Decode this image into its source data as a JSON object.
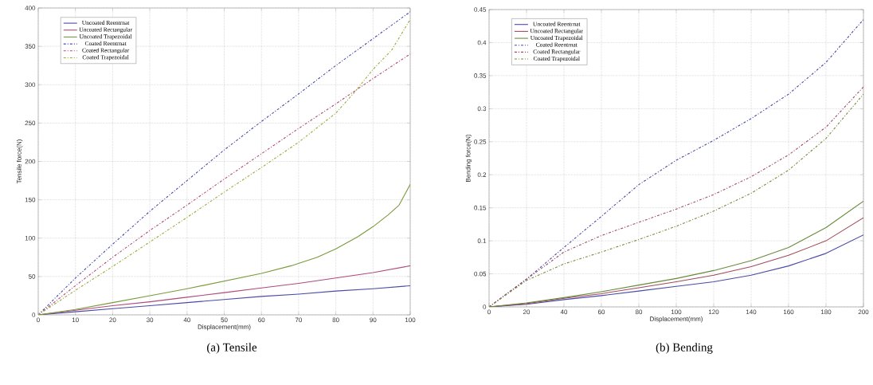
{
  "chart_data": [
    {
      "type": "line",
      "title": "(a) Tensile",
      "xlabel": "Displacement(mm)",
      "ylabel": "Tensile force(N)",
      "xlim": [
        0,
        100
      ],
      "xticks": [
        0,
        10,
        20,
        30,
        40,
        50,
        60,
        70,
        80,
        90,
        100
      ],
      "ylim": [
        0,
        400
      ],
      "yticks": [
        0,
        50,
        100,
        150,
        200,
        250,
        300,
        350,
        400
      ],
      "grid": true,
      "legend": "top left",
      "marker": "none",
      "series": [
        {
          "name": "Uncoated Reentrnat",
          "color": "#4a4aa8",
          "line_style": "solid",
          "x": [
            0,
            10,
            20,
            30,
            40,
            50,
            60,
            70,
            80,
            90,
            100
          ],
          "values": [
            0,
            4,
            8,
            12,
            16,
            20,
            24,
            27,
            31,
            34,
            38
          ]
        },
        {
          "name": "Uncoated Rectangular",
          "color": "#b04a7a",
          "line_style": "solid",
          "x": [
            0,
            10,
            20,
            30,
            40,
            50,
            60,
            70,
            80,
            90,
            100
          ],
          "values": [
            0,
            6,
            12,
            17,
            23,
            29,
            35,
            41,
            48,
            55,
            64
          ]
        },
        {
          "name": "Uncoated Trapezoidal",
          "color": "#7a9a3a",
          "line_style": "solid",
          "x": [
            0,
            10,
            20,
            30,
            40,
            50,
            60,
            68,
            75,
            80,
            86,
            90,
            94,
            97,
            100
          ],
          "values": [
            0,
            7,
            16,
            25,
            34,
            44,
            54,
            64,
            75,
            86,
            102,
            115,
            130,
            143,
            170
          ]
        },
        {
          "name": "Coated Reentrnat",
          "color": "#4a4aa8",
          "line_style": "dashed",
          "x": [
            0,
            10,
            20,
            30,
            40,
            50,
            60,
            70,
            80,
            90,
            100
          ],
          "values": [
            0,
            48,
            92,
            135,
            175,
            215,
            252,
            288,
            325,
            360,
            395
          ]
        },
        {
          "name": "Coated Rectangular",
          "color": "#b04a7a",
          "line_style": "dashed",
          "x": [
            0,
            10,
            20,
            30,
            40,
            50,
            60,
            70,
            80,
            90,
            100
          ],
          "values": [
            0,
            38,
            75,
            110,
            143,
            177,
            210,
            243,
            275,
            308,
            340
          ]
        },
        {
          "name": "Coated Trapezoidal",
          "color": "#9aaa3a",
          "line_style": "dashed",
          "x": [
            0,
            10,
            20,
            30,
            40,
            50,
            60,
            70,
            80,
            85,
            90,
            95,
            100
          ],
          "values": [
            0,
            32,
            63,
            95,
            127,
            160,
            192,
            225,
            263,
            290,
            320,
            345,
            385
          ]
        }
      ]
    },
    {
      "type": "line",
      "title": "(b) Bending",
      "xlabel": "Displacement(mm)",
      "ylabel": "Bending force(N)",
      "xlim": [
        0,
        200
      ],
      "xticks": [
        0,
        20,
        40,
        60,
        80,
        100,
        120,
        140,
        160,
        180,
        200
      ],
      "ylim": [
        0,
        0.45
      ],
      "yticks": [
        0,
        0.05,
        0.1,
        0.15,
        0.2,
        0.25,
        0.3,
        0.35,
        0.4,
        0.45
      ],
      "grid": true,
      "legend": "top left",
      "marker": "none",
      "series": [
        {
          "name": "Uncoated Reentrnat",
          "color": "#4a4aa8",
          "line_style": "solid",
          "x": [
            0,
            20,
            40,
            60,
            80,
            100,
            120,
            140,
            160,
            180,
            200
          ],
          "values": [
            0,
            0.004,
            0.011,
            0.017,
            0.024,
            0.031,
            0.038,
            0.048,
            0.062,
            0.081,
            0.109
          ]
        },
        {
          "name": "Uncoated Rectangular",
          "color": "#a04a5a",
          "line_style": "solid",
          "x": [
            0,
            20,
            40,
            60,
            80,
            100,
            120,
            140,
            160,
            180,
            200
          ],
          "values": [
            0,
            0.005,
            0.013,
            0.02,
            0.029,
            0.038,
            0.048,
            0.061,
            0.078,
            0.1,
            0.135
          ]
        },
        {
          "name": "Uncoated Trapezoidal",
          "color": "#6a8a3a",
          "line_style": "solid",
          "x": [
            0,
            20,
            40,
            60,
            80,
            100,
            120,
            140,
            160,
            180,
            200
          ],
          "values": [
            0,
            0.006,
            0.014,
            0.023,
            0.033,
            0.043,
            0.055,
            0.07,
            0.09,
            0.12,
            0.16
          ]
        },
        {
          "name": "Coated Reentrnat",
          "color": "#4a4aa8",
          "line_style": "dashed",
          "x": [
            0,
            20,
            40,
            60,
            80,
            100,
            120,
            140,
            160,
            180,
            200
          ],
          "values": [
            0,
            0.042,
            0.09,
            0.137,
            0.185,
            0.222,
            0.252,
            0.285,
            0.322,
            0.37,
            0.435
          ]
        },
        {
          "name": "Coated Rectangular",
          "color": "#a04a6a",
          "line_style": "dashed",
          "x": [
            0,
            20,
            40,
            60,
            80,
            100,
            120,
            140,
            160,
            180,
            200
          ],
          "values": [
            0,
            0.042,
            0.083,
            0.108,
            0.128,
            0.148,
            0.17,
            0.197,
            0.23,
            0.272,
            0.333
          ]
        },
        {
          "name": "Coated Trapezoidal",
          "color": "#7a8a3a",
          "line_style": "dashed",
          "x": [
            0,
            20,
            40,
            60,
            80,
            100,
            120,
            140,
            160,
            180,
            200
          ],
          "values": [
            0,
            0.04,
            0.065,
            0.083,
            0.102,
            0.122,
            0.145,
            0.172,
            0.207,
            0.255,
            0.322
          ]
        }
      ]
    }
  ]
}
